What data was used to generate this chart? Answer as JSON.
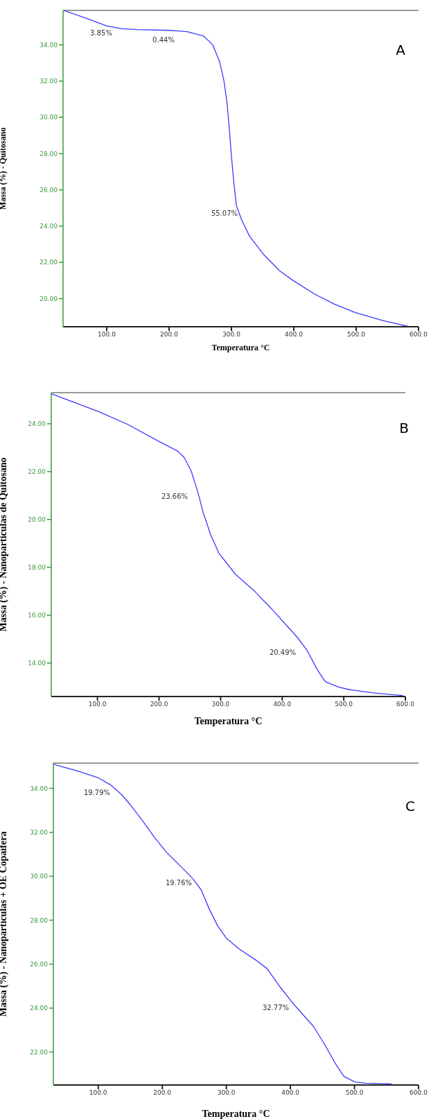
{
  "chart_data": [
    {
      "type": "line",
      "xlabel": "Temperatura °C",
      "ylabel": "Massa (%) - Quitosano",
      "color": "#3a3aff",
      "line_style": "solid",
      "marker": "none",
      "xlim": [
        30,
        600
      ],
      "ylim": [
        18.45,
        35.9
      ],
      "xticks": [
        {
          "value": 100,
          "label": "100.0"
        },
        {
          "value": 200,
          "label": "200.0"
        },
        {
          "value": 300,
          "label": "300.0"
        },
        {
          "value": 400,
          "label": "400.0"
        },
        {
          "value": 500,
          "label": "500.0"
        },
        {
          "value": 600,
          "label": "600.0"
        }
      ],
      "yticks": [
        {
          "value": 20,
          "label": "20.00"
        },
        {
          "value": 22,
          "label": "22.00"
        },
        {
          "value": 24,
          "label": "24.00"
        },
        {
          "value": 26,
          "label": "26.00"
        },
        {
          "value": 28,
          "label": "28.00"
        },
        {
          "value": 30,
          "label": "30.00"
        },
        {
          "value": 32,
          "label": "32.00"
        },
        {
          "value": 34,
          "label": "34.00"
        }
      ],
      "x": [
        31,
        72,
        100,
        124,
        149,
        200,
        229,
        255,
        270,
        281,
        288,
        293,
        296.5,
        300,
        304,
        308,
        316,
        329,
        351,
        377,
        399,
        434,
        465,
        498,
        543,
        583
      ],
      "values": [
        35.9,
        35.41,
        35.04,
        34.89,
        34.84,
        34.8,
        34.73,
        34.49,
        34,
        33.08,
        32.01,
        30.79,
        29.41,
        27.88,
        26.35,
        25.13,
        24.37,
        23.45,
        22.46,
        21.54,
        21.0,
        20.24,
        19.7,
        19.24,
        18.79,
        18.47
      ],
      "annotations": [
        "A",
        "3.85%",
        "0.44%",
        "55.07%"
      ]
    },
    {
      "type": "line",
      "xlabel": "Temperatura °C",
      "ylabel": "Massa (%) - Nanoparticulas de Quitosano",
      "color": "#3a3aff",
      "line_style": "solid",
      "marker": "none",
      "xlim": [
        25,
        600
      ],
      "ylim": [
        12.6,
        25.3
      ],
      "xticks": [
        {
          "value": 100,
          "label": "100.0"
        },
        {
          "value": 200,
          "label": "200.0"
        },
        {
          "value": 300,
          "label": "300.0"
        },
        {
          "value": 400,
          "label": "400.0"
        },
        {
          "value": 500,
          "label": "500.0"
        },
        {
          "value": 600,
          "label": "600.0"
        }
      ],
      "yticks": [
        {
          "value": 14,
          "label": "14.00"
        },
        {
          "value": 16,
          "label": "16.00"
        },
        {
          "value": 18,
          "label": "18.00"
        },
        {
          "value": 20,
          "label": "20.00"
        },
        {
          "value": 22,
          "label": "22.00"
        },
        {
          "value": 24,
          "label": "24.00"
        }
      ],
      "x": [
        25.3,
        76.6,
        100,
        148.6,
        200,
        229.6,
        240.9,
        252,
        263,
        272,
        283.6,
        297,
        324,
        355.6,
        382.6,
        409.6,
        425.4,
        441,
        457,
        470,
        490.6,
        508.6,
        549,
        596
      ],
      "values": [
        25.25,
        24.75,
        24.53,
        23.98,
        23.26,
        22.87,
        22.59,
        22.04,
        21.15,
        20.26,
        19.38,
        18.6,
        17.71,
        16.99,
        16.27,
        15.5,
        15.05,
        14.5,
        13.72,
        13.22,
        13.0,
        12.89,
        12.75,
        12.64
      ],
      "annotations": [
        "B",
        "23.66%",
        "20.49%"
      ]
    },
    {
      "type": "line",
      "xlabel": "Temperatura °C",
      "ylabel": "Massa (%) - Nanopartículas + OE Copaífera",
      "color": "#3a3aff",
      "line_style": "solid",
      "marker": "none",
      "xlim": [
        30,
        600
      ],
      "ylim": [
        20.5,
        35.15
      ],
      "xticks": [
        {
          "value": 100,
          "label": "100.0"
        },
        {
          "value": 200,
          "label": "200.0"
        },
        {
          "value": 300,
          "label": "300.0"
        },
        {
          "value": 400,
          "label": "400.0"
        },
        {
          "value": 500,
          "label": "500.0"
        },
        {
          "value": 600,
          "label": "600.0"
        }
      ],
      "yticks": [
        {
          "value": 22,
          "label": "22.00"
        },
        {
          "value": 24,
          "label": "24.00"
        },
        {
          "value": 26,
          "label": "26.00"
        },
        {
          "value": 28,
          "label": "28.00"
        },
        {
          "value": 30,
          "label": "30.00"
        },
        {
          "value": 32,
          "label": "32.00"
        },
        {
          "value": 34,
          "label": "34.00"
        }
      ],
      "x": [
        30.5,
        33.6,
        67.9,
        100,
        119.3,
        136.4,
        149.3,
        170.7,
        187.8,
        207,
        226.4,
        247.8,
        260.7,
        273.5,
        286.4,
        300,
        320.6,
        346.4,
        363.5,
        385,
        402,
        419,
        436.3,
        453.5,
        470.6,
        483.5,
        500.6,
        517.7,
        558
      ],
      "values": [
        35.12,
        35.07,
        34.79,
        34.48,
        34.16,
        33.72,
        33.28,
        32.47,
        31.77,
        31.08,
        30.52,
        29.89,
        29.38,
        28.5,
        27.75,
        27.18,
        26.68,
        26.18,
        25.8,
        24.92,
        24.29,
        23.72,
        23.16,
        22.34,
        21.46,
        20.89,
        20.64,
        20.58,
        20.55
      ],
      "annotations": [
        "C",
        "19.79%",
        "19.76%",
        "32.77%"
      ]
    }
  ]
}
